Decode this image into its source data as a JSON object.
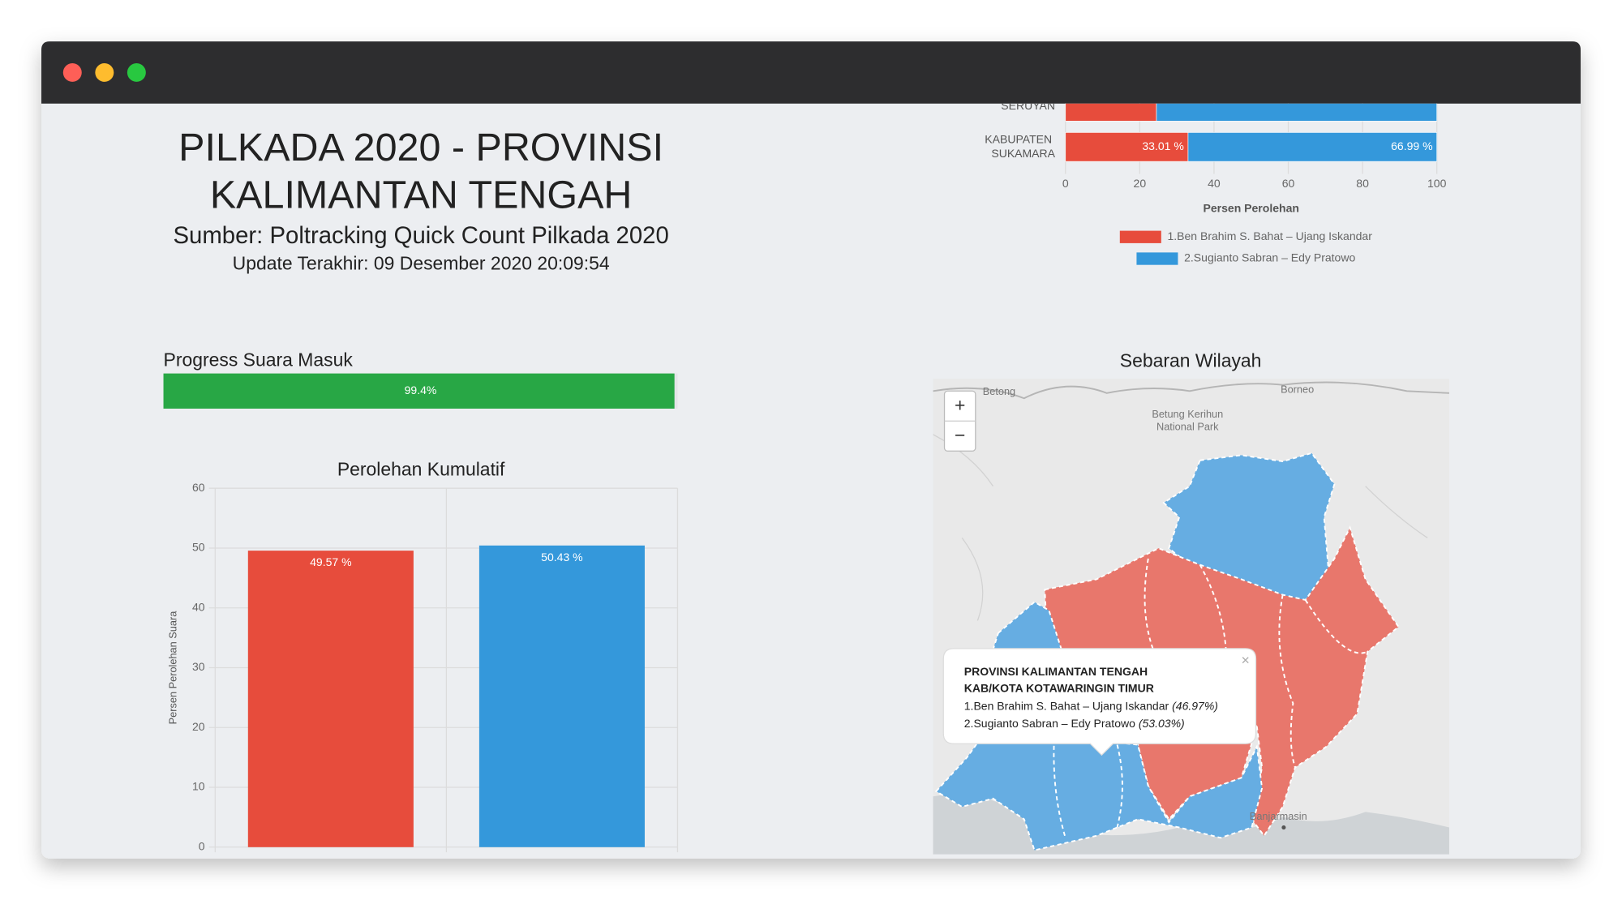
{
  "header": {
    "title_line1": "PILKADA 2020 - PROVINSI",
    "title_line2": "KALIMANTAN TENGAH",
    "source": "Sumber: Poltracking Quick Count Pilkada 2020",
    "updated": "Update Terakhir: 09 Desember 2020 20:09:54"
  },
  "progress": {
    "title": "Progress Suara Masuk",
    "value": 99.4,
    "value_label": "99.4%",
    "color": "#28a745"
  },
  "cumulative_chart": {
    "type": "bar",
    "title": "Perolehan Kumulatif",
    "y_label": "Persen Perolehan Suara",
    "values": [
      49.57,
      50.43
    ],
    "value_labels": [
      "49.57 %",
      "50.43 %"
    ],
    "colors": [
      "#e74c3c",
      "#3498db"
    ],
    "ylim": [
      0,
      60
    ],
    "yticks": [
      0,
      10,
      20,
      30,
      40,
      50,
      60
    ],
    "grid": true
  },
  "regional_chart": {
    "type": "bar",
    "orientation": "horizontal",
    "stacked": true,
    "x_label": "Persen Perolehan",
    "categories": [
      "SERUYAN",
      "KABUPATEN SUKAMARA"
    ],
    "series": [
      {
        "name": "1.Ben Brahim S. Bahat – Ujang Iskandar",
        "color": "#e74c3c",
        "values": [
          24.5,
          33.01
        ],
        "value_labels": [
          null,
          "33.01 %"
        ]
      },
      {
        "name": "2.Sugianto Sabran – Edy Pratowo",
        "color": "#3498db",
        "values": [
          75.5,
          66.99
        ],
        "value_labels": [
          null,
          "66.99 %"
        ]
      }
    ],
    "xlim": [
      0,
      100
    ],
    "xticks": [
      0,
      20,
      40,
      60,
      80,
      100
    ],
    "grid": true
  },
  "map": {
    "title": "Sebaran Wilayah",
    "zoom_in": "+",
    "zoom_out": "−",
    "places": [
      "Betong",
      "Borneo",
      "Betung Kerihun",
      "National Park",
      "Banjarmasin"
    ],
    "tooltip": {
      "close": "×",
      "line1": "PROVINSI KALIMANTAN TENGAH",
      "line2": "KAB/KOTA KOTAWARINGIN TIMUR",
      "items": [
        {
          "text": "1.Ben Brahim S. Bahat – Ujang Iskandar",
          "share": "(46.97%)"
        },
        {
          "text": "2.Sugianto Sabran – Edy Pratowo",
          "share": "(53.03%)"
        }
      ]
    }
  }
}
